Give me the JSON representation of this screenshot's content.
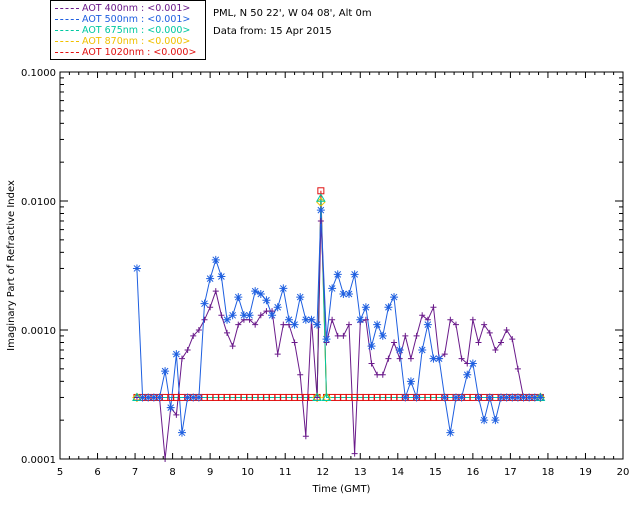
{
  "legend": [
    {
      "label": "AOT  400nm : <0.001>",
      "color": "#6a1a8a"
    },
    {
      "label": "AOT  500nm : <0.001>",
      "color": "#1e5fe0"
    },
    {
      "label": "AOT  675nm : <0.000>",
      "color": "#00c8a0"
    },
    {
      "label": "AOT  870nm : <0.000>",
      "color": "#f0c000"
    },
    {
      "label": "AOT 1020nm : <0.000>",
      "color": "#e01010"
    }
  ],
  "info": {
    "site": "PML, N 50 22', W 04 08', Alt 0m",
    "date": "Data from: 15 Apr 2015"
  },
  "chart_data": {
    "type": "line",
    "title": "",
    "xlabel": "Time (GMT)",
    "ylabel": "Imaginary Part of Refractive Index",
    "xlim": [
      5,
      20
    ],
    "ylim": [
      0.0001,
      0.1
    ],
    "yscale": "log",
    "x_ticks": [
      "5",
      "6",
      "7",
      "8",
      "9",
      "10",
      "11",
      "12",
      "13",
      "14",
      "15",
      "16",
      "17",
      "18",
      "19",
      "20"
    ],
    "y_ticks": [
      {
        "value": 0.0001,
        "label": "0.0001"
      },
      {
        "value": 0.001,
        "label": "0.0010"
      },
      {
        "value": 0.01,
        "label": "0.0100"
      },
      {
        "value": 0.1,
        "label": "0.1000"
      }
    ],
    "series": [
      {
        "name": "AOT 400nm",
        "color": "#6a1a8a",
        "marker": "plus",
        "x": [
          7.05,
          7.2,
          7.35,
          7.5,
          7.65,
          7.8,
          7.95,
          8.1,
          8.25,
          8.4,
          8.55,
          8.7,
          8.85,
          9.0,
          9.15,
          9.3,
          9.45,
          9.6,
          9.75,
          9.9,
          10.05,
          10.2,
          10.35,
          10.5,
          10.65,
          10.8,
          10.95,
          11.1,
          11.25,
          11.4,
          11.55,
          11.7,
          11.85,
          11.95,
          12.1,
          12.25,
          12.4,
          12.55,
          12.7,
          12.85,
          13.0,
          13.15,
          13.3,
          13.45,
          13.6,
          13.75,
          13.9,
          14.05,
          14.2,
          14.35,
          14.5,
          14.65,
          14.8,
          14.95,
          15.1,
          15.25,
          15.4,
          15.55,
          15.7,
          15.85,
          16.0,
          16.15,
          16.3,
          16.45,
          16.6,
          16.75,
          16.9,
          17.05,
          17.2,
          17.35,
          17.5,
          17.65,
          17.8
        ],
        "y": [
          0.0003,
          0.0003,
          0.0003,
          0.0003,
          0.0003,
          8e-05,
          0.00025,
          0.00022,
          0.0006,
          0.0007,
          0.0009,
          0.001,
          0.0012,
          0.0015,
          0.002,
          0.0013,
          0.00095,
          0.00075,
          0.0011,
          0.0012,
          0.0012,
          0.0011,
          0.0013,
          0.0014,
          0.0014,
          0.00065,
          0.0011,
          0.0011,
          0.0008,
          0.00045,
          0.00015,
          0.0012,
          0.0003,
          0.007,
          0.0008,
          0.0012,
          0.0009,
          0.0009,
          0.0011,
          0.00011,
          0.00115,
          0.0012,
          0.00055,
          0.00045,
          0.00045,
          0.0006,
          0.0008,
          0.0006,
          0.0009,
          0.0006,
          0.0009,
          0.0013,
          0.0012,
          0.0015,
          0.0006,
          0.00065,
          0.0012,
          0.0011,
          0.0006,
          0.00055,
          0.0012,
          0.0008,
          0.0011,
          0.00095,
          0.0007,
          0.0008,
          0.001,
          0.00085,
          0.0005,
          0.0003,
          0.0003,
          0.0003,
          0.0003
        ]
      },
      {
        "name": "AOT 500nm",
        "color": "#1e5fe0",
        "marker": "asterisk",
        "x": [
          7.05,
          7.2,
          7.35,
          7.5,
          7.65,
          7.8,
          7.95,
          8.1,
          8.25,
          8.4,
          8.55,
          8.7,
          8.85,
          9.0,
          9.15,
          9.3,
          9.45,
          9.6,
          9.75,
          9.9,
          10.05,
          10.2,
          10.35,
          10.5,
          10.65,
          10.8,
          10.95,
          11.1,
          11.25,
          11.4,
          11.55,
          11.7,
          11.85,
          11.95,
          12.1,
          12.25,
          12.4,
          12.55,
          12.7,
          12.85,
          13.0,
          13.15,
          13.3,
          13.45,
          13.6,
          13.75,
          13.9,
          14.05,
          14.2,
          14.35,
          14.5,
          14.65,
          14.8,
          14.95,
          15.1,
          15.25,
          15.4,
          15.55,
          15.7,
          15.85,
          16.0,
          16.15,
          16.3,
          16.45,
          16.6,
          16.75,
          16.9,
          17.05,
          17.2,
          17.35,
          17.5,
          17.65,
          17.8
        ],
        "y": [
          0.003,
          0.0003,
          0.0003,
          0.0003,
          0.0003,
          0.00048,
          0.00025,
          0.00065,
          0.00016,
          0.0003,
          0.0003,
          0.0003,
          0.0016,
          0.0025,
          0.0035,
          0.0026,
          0.0012,
          0.0013,
          0.0018,
          0.0013,
          0.0013,
          0.002,
          0.0019,
          0.0017,
          0.0013,
          0.0015,
          0.0021,
          0.0012,
          0.0011,
          0.0018,
          0.0012,
          0.0012,
          0.0011,
          0.0085,
          0.00085,
          0.0021,
          0.0027,
          0.0019,
          0.0019,
          0.0027,
          0.0012,
          0.0015,
          0.00075,
          0.0011,
          0.0009,
          0.0015,
          0.0018,
          0.0007,
          0.0003,
          0.0004,
          0.0003,
          0.0007,
          0.0011,
          0.0006,
          0.0006,
          0.0003,
          0.00016,
          0.0003,
          0.0003,
          0.00045,
          0.00055,
          0.0003,
          0.0002,
          0.0003,
          0.0002,
          0.0003,
          0.0003,
          0.0003,
          0.0003,
          0.0003,
          0.0003,
          0.0003,
          0.0003
        ]
      },
      {
        "name": "AOT 675nm",
        "color": "#00c8a0",
        "marker": "triangle",
        "x": [
          7.05,
          11.85,
          11.95,
          12.1,
          17.8
        ],
        "y": [
          0.0003,
          0.0003,
          0.0105,
          0.0003,
          0.0003
        ]
      },
      {
        "name": "AOT 870nm",
        "color": "#f0c000",
        "marker": "diamond",
        "x": [
          7.05,
          11.85,
          11.95,
          12.1,
          17.8
        ],
        "y": [
          0.0003,
          0.0003,
          0.0098,
          0.0003,
          0.0003
        ]
      },
      {
        "name": "AOT 1020nm",
        "color": "#e01010",
        "marker": "square",
        "x": [
          7.05,
          7.2,
          7.35,
          7.5,
          7.65,
          7.8,
          7.95,
          8.1,
          8.25,
          8.4,
          8.55,
          8.7,
          8.85,
          9.0,
          9.15,
          9.3,
          9.45,
          9.6,
          9.75,
          9.9,
          10.05,
          10.2,
          10.35,
          10.5,
          10.65,
          10.8,
          10.95,
          11.1,
          11.25,
          11.4,
          11.55,
          11.7,
          11.85,
          11.95,
          12.1,
          12.25,
          12.4,
          12.55,
          12.7,
          12.85,
          13.0,
          13.15,
          13.3,
          13.45,
          13.6,
          13.75,
          13.9,
          14.05,
          14.2,
          14.35,
          14.5,
          14.65,
          14.8,
          14.95,
          15.1,
          15.25,
          15.4,
          15.55,
          15.7,
          15.85,
          16.0,
          16.15,
          16.3,
          16.45,
          16.6,
          16.75,
          16.9,
          17.05,
          17.2,
          17.35,
          17.5,
          17.65,
          17.8
        ],
        "y": [
          0.0003,
          0.0003,
          0.0003,
          0.0003,
          0.0003,
          0.0003,
          0.0003,
          0.0003,
          0.0003,
          0.0003,
          0.0003,
          0.0003,
          0.0003,
          0.0003,
          0.0003,
          0.0003,
          0.0003,
          0.0003,
          0.0003,
          0.0003,
          0.0003,
          0.0003,
          0.0003,
          0.0003,
          0.0003,
          0.0003,
          0.0003,
          0.0003,
          0.0003,
          0.0003,
          0.0003,
          0.0003,
          0.0003,
          0.012,
          0.0003,
          0.0003,
          0.0003,
          0.0003,
          0.0003,
          0.0003,
          0.0003,
          0.0003,
          0.0003,
          0.0003,
          0.0003,
          0.0003,
          0.0003,
          0.0003,
          0.0003,
          0.0003,
          0.0003,
          0.0003,
          0.0003,
          0.0003,
          0.0003,
          0.0003,
          0.0003,
          0.0003,
          0.0003,
          0.0003,
          0.0003,
          0.0003,
          0.0003,
          0.0003,
          0.0003,
          0.0003,
          0.0003,
          0.0003,
          0.0003,
          0.0003,
          0.0003,
          0.0003,
          0.0003
        ]
      }
    ]
  }
}
